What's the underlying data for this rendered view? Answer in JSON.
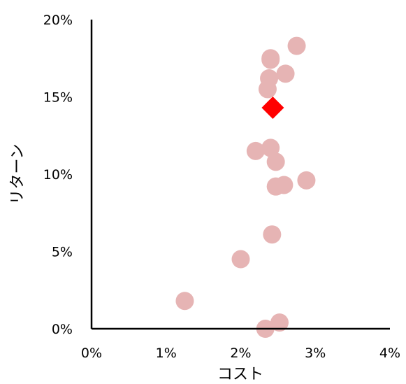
{
  "chart_data": {
    "type": "scatter",
    "xlabel": "コスト",
    "ylabel": "リターン",
    "xlim": [
      0,
      4
    ],
    "ylim": [
      0,
      20
    ],
    "x_ticks": [
      "0%",
      "1%",
      "2%",
      "3%",
      "4%"
    ],
    "y_ticks": [
      "0%",
      "5%",
      "10%",
      "15%",
      "20%"
    ],
    "x_unit": "%",
    "y_unit": "%",
    "grid": false,
    "legend": "none",
    "series": [
      {
        "marker": "circle",
        "color": "#e6b4b4",
        "points": [
          {
            "x": 2.75,
            "y": 18.3
          },
          {
            "x": 2.4,
            "y": 17.5
          },
          {
            "x": 2.4,
            "y": 17.4
          },
          {
            "x": 2.6,
            "y": 16.5
          },
          {
            "x": 2.38,
            "y": 16.2
          },
          {
            "x": 2.36,
            "y": 15.5
          },
          {
            "x": 2.4,
            "y": 11.7
          },
          {
            "x": 2.2,
            "y": 11.5
          },
          {
            "x": 2.47,
            "y": 10.8
          },
          {
            "x": 2.88,
            "y": 9.6
          },
          {
            "x": 2.58,
            "y": 9.3
          },
          {
            "x": 2.47,
            "y": 9.2
          },
          {
            "x": 2.42,
            "y": 6.1
          },
          {
            "x": 2.0,
            "y": 4.5
          },
          {
            "x": 1.25,
            "y": 1.8
          },
          {
            "x": 2.52,
            "y": 0.4
          },
          {
            "x": 2.33,
            "y": 0.0
          }
        ]
      },
      {
        "marker": "diamond",
        "color": "#ff0000",
        "points": [
          {
            "x": 2.43,
            "y": 14.3
          }
        ]
      }
    ]
  }
}
